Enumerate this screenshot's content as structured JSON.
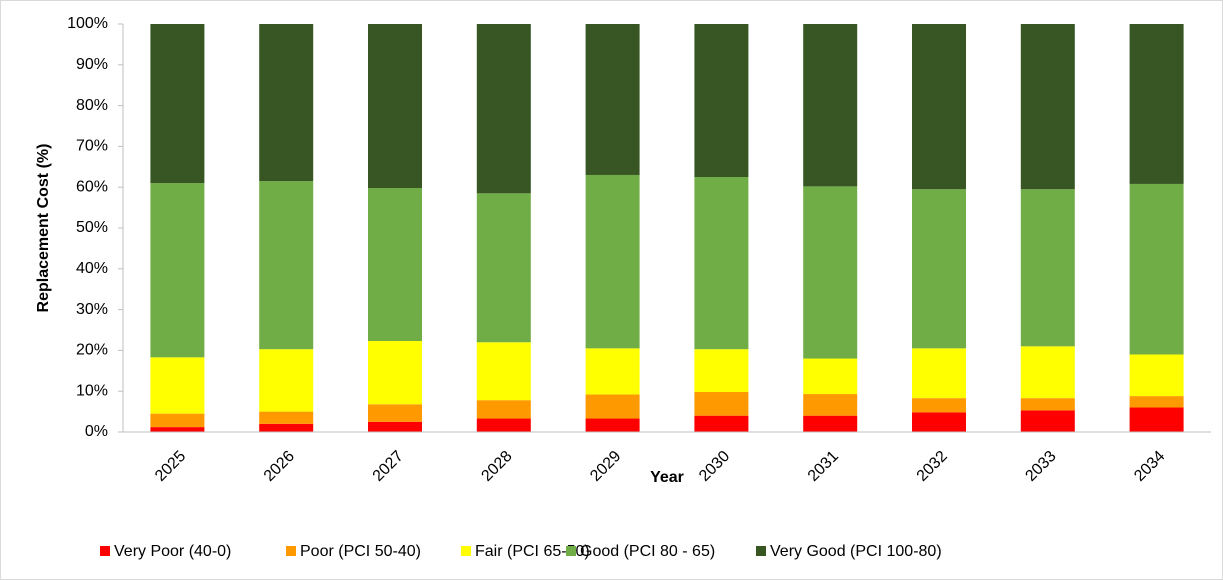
{
  "chart_data": {
    "type": "stacked_bar",
    "x_label": "Year",
    "y_label": "Replacement Cost (%)",
    "categories": [
      "2025",
      "2026",
      "2027",
      "2028",
      "2029",
      "2030",
      "2031",
      "2032",
      "2033",
      "2034"
    ],
    "series": [
      {
        "name": "Very Poor (40-0)",
        "color": "#ff0000",
        "values": [
          1.2,
          2,
          2.5,
          3.3,
          3.3,
          4,
          4,
          4.8,
          5.3,
          6
        ]
      },
      {
        "name": "Poor (PCI 50-40)",
        "color": "#ff9900",
        "values": [
          3.3,
          3,
          4.3,
          4.5,
          5.9,
          5.8,
          5.3,
          3.5,
          3,
          2.8
        ]
      },
      {
        "name": "Fair (PCI 65-50)",
        "color": "#ffff00",
        "values": [
          13.8,
          15.3,
          15.5,
          14.2,
          11.3,
          10.5,
          8.7,
          12.2,
          12.7,
          10.2
        ]
      },
      {
        "name": "Good (PCI 80 - 65)",
        "color": "#70ad47",
        "values": [
          42.7,
          41.2,
          37.5,
          36.5,
          42.5,
          42.2,
          42.2,
          39,
          38.5,
          41.8
        ]
      },
      {
        "name": "Very Good (PCI 100-80)",
        "color": "#375623",
        "values": [
          39,
          38.5,
          40.2,
          41.5,
          37,
          37.5,
          39.8,
          40.5,
          40.5,
          39.2
        ]
      }
    ],
    "ylim": [
      0,
      100
    ],
    "yticks": [
      {
        "value": 0,
        "label": "0%"
      },
      {
        "value": 10,
        "label": "10%"
      },
      {
        "value": 20,
        "label": "20%"
      },
      {
        "value": 30,
        "label": "30%"
      },
      {
        "value": 40,
        "label": "40%"
      },
      {
        "value": 50,
        "label": "50%"
      },
      {
        "value": 60,
        "label": "60%"
      },
      {
        "value": 70,
        "label": "70%"
      },
      {
        "value": 80,
        "label": "80%"
      },
      {
        "value": 90,
        "label": "90%"
      },
      {
        "value": 100,
        "label": "100%"
      }
    ],
    "legend": "bottom"
  }
}
